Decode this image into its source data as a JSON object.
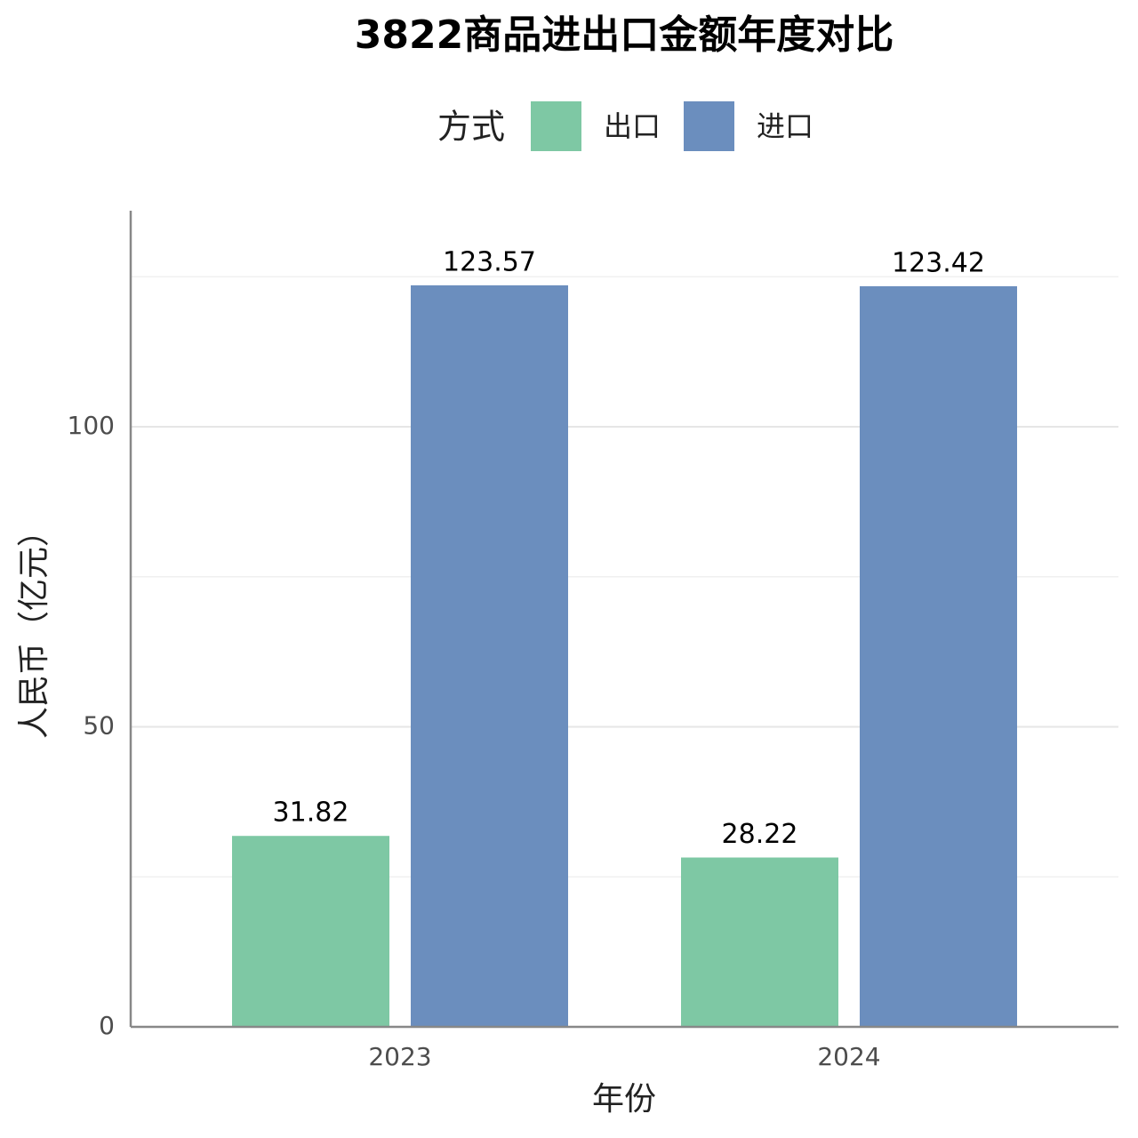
{
  "chart_data": {
    "type": "bar",
    "title": "3822商品进出口金额年度对比",
    "legend_title": "方式",
    "x_label": "年份",
    "y_label": "人民币（亿元）",
    "categories": [
      "2023",
      "2024"
    ],
    "series": [
      {
        "name": "出口",
        "color": "#7ec8a4",
        "values": [
          31.82,
          28.22
        ]
      },
      {
        "name": "进口",
        "color": "#6b8ebe",
        "values": [
          123.57,
          123.42
        ]
      }
    ],
    "ylim": [
      0,
      136
    ],
    "yticks": [
      0,
      50,
      100
    ],
    "minor_yticks": [
      25,
      75,
      125
    ],
    "grid": true,
    "legend_position": "top"
  }
}
